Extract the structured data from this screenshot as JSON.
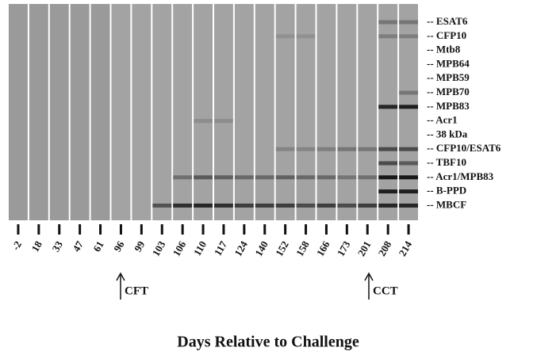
{
  "figure": {
    "lanes": [
      "-2",
      "18",
      "33",
      "47",
      "61",
      "96",
      "99",
      "103",
      "106",
      "110",
      "117",
      "124",
      "140",
      "152",
      "158",
      "166",
      "173",
      "201",
      "208",
      "214"
    ],
    "antigens": [
      "-- ESAT6",
      "-- CFP10",
      "-- Mtb8",
      "-- MPB64",
      "-- MPB59",
      "-- MPB70",
      "-- MPB83",
      "-- Acr1",
      "-- 38 kDa",
      "-- CFP10/ESAT6",
      "-- TBF10",
      "-- Acr1/MPB83",
      "-- B-PPD",
      "-- MBCF"
    ],
    "annotations": [
      "CFT",
      "CCT"
    ],
    "x_axis_title": "Days Relative to Challenge"
  }
}
